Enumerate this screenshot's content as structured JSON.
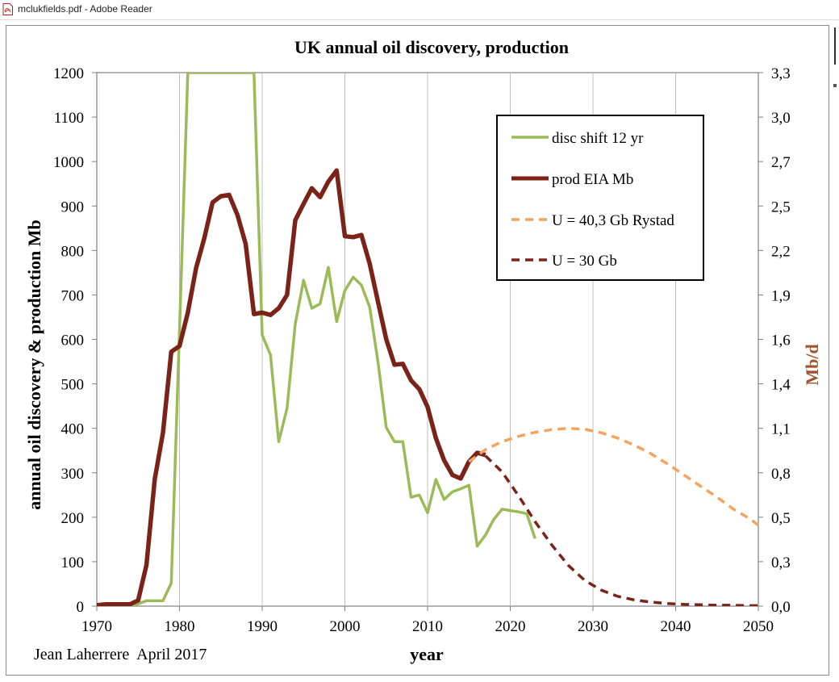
{
  "window": {
    "title": "mclukfields.pdf - Adobe Reader"
  },
  "chart_data": {
    "type": "line",
    "title": "UK annual oil discovery, production",
    "xlabel": "year",
    "ylabel": "annual oil discovery & production Mb",
    "y2label": "Mb/d",
    "credit": "Jean Laherrere  April 2017",
    "xlim": [
      1970,
      2050
    ],
    "ylim": [
      0,
      1200
    ],
    "y2lim": [
      0,
      3.3
    ],
    "x_ticks": [
      "1970",
      "1980",
      "1990",
      "2000",
      "2010",
      "2020",
      "2030",
      "2040",
      "2050"
    ],
    "y_ticks": [
      "0",
      "100",
      "200",
      "300",
      "400",
      "500",
      "600",
      "700",
      "800",
      "900",
      "1000",
      "1100",
      "1200"
    ],
    "y2_ticks": [
      "0,0",
      "0,3",
      "0,5",
      "0,8",
      "1,1",
      "1,4",
      "1,6",
      "1,9",
      "2,2",
      "2,5",
      "2,7",
      "3,0",
      "3,3"
    ],
    "grid": "vertical",
    "legend_position": "top-right",
    "series": [
      {
        "name": "disc shift 12 yr",
        "color": "#9bbb59",
        "style": "solid",
        "x": [
          1970,
          1971,
          1972,
          1973,
          1974,
          1975,
          1976,
          1977,
          1978,
          1979,
          1980,
          1981,
          1989,
          1990,
          1991,
          1992,
          1993,
          1994,
          1995,
          1996,
          1997,
          1998,
          1999,
          2000,
          2001,
          2002,
          2003,
          2004,
          2005,
          2006,
          2007,
          2008,
          2009,
          2010,
          2011,
          2012,
          2013,
          2014,
          2015,
          2016,
          2017,
          2018,
          2019,
          2020,
          2021,
          2022,
          2023
        ],
        "values": [
          0,
          0,
          0,
          0,
          0,
          5,
          12,
          12,
          12,
          52,
          620,
          1200,
          1200,
          610,
          565,
          370,
          445,
          635,
          733,
          670,
          680,
          762,
          640,
          710,
          740,
          722,
          672,
          550,
          402,
          370,
          370,
          245,
          250,
          210,
          285,
          240,
          257,
          264,
          272,
          135,
          160,
          195,
          218,
          215,
          212,
          208,
          152
        ]
      },
      {
        "name": "prod EIA Mb",
        "color": "#7b2318",
        "style": "solid",
        "x": [
          1970,
          1971,
          1972,
          1973,
          1974,
          1975,
          1976,
          1977,
          1978,
          1979,
          1980,
          1981,
          1982,
          1983,
          1984,
          1985,
          1986,
          1987,
          1988,
          1989,
          1990,
          1991,
          1992,
          1993,
          1994,
          1995,
          1996,
          1997,
          1998,
          1999,
          2000,
          2001,
          2002,
          2003,
          2004,
          2005,
          2006,
          2007,
          2008,
          2009,
          2010,
          2011,
          2012,
          2013,
          2014,
          2015,
          2016,
          2017
        ],
        "values": [
          2,
          4,
          4,
          4,
          4,
          13,
          92,
          285,
          390,
          572,
          585,
          660,
          760,
          828,
          908,
          922,
          925,
          880,
          815,
          657,
          660,
          655,
          670,
          700,
          868,
          905,
          940,
          920,
          955,
          980,
          832,
          830,
          835,
          770,
          685,
          600,
          543,
          545,
          508,
          488,
          448,
          378,
          328,
          295,
          287,
          325,
          345,
          340
        ]
      },
      {
        "name": "U = 40,3 Gb Rystad",
        "color": "#f4a460",
        "style": "dashed",
        "x": [
          2015,
          2017,
          2019,
          2021,
          2023,
          2025,
          2027,
          2029,
          2031,
          2033,
          2035,
          2037,
          2039,
          2041,
          2043,
          2045,
          2047,
          2049,
          2050
        ],
        "values": [
          325,
          352,
          370,
          382,
          391,
          397,
          400,
          398,
          390,
          378,
          362,
          343,
          320,
          295,
          270,
          245,
          218,
          196,
          182
        ]
      },
      {
        "name": "U = 30 Gb",
        "color": "#7b2318",
        "style": "dashed",
        "x": [
          2017,
          2019,
          2021,
          2023,
          2025,
          2027,
          2029,
          2031,
          2033,
          2035,
          2037,
          2039,
          2041,
          2043,
          2045,
          2047,
          2049,
          2050
        ],
        "values": [
          338,
          302,
          248,
          190,
          138,
          92,
          58,
          36,
          22,
          14,
          9,
          6,
          4,
          3,
          2,
          2,
          1,
          1
        ]
      }
    ]
  }
}
